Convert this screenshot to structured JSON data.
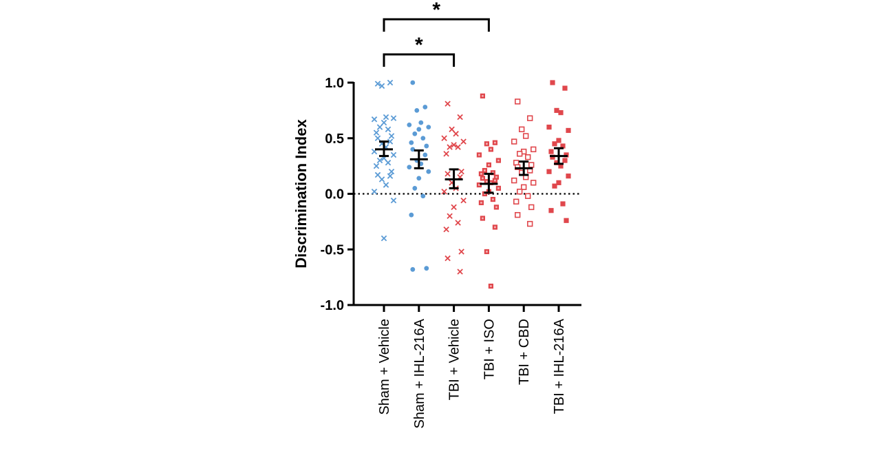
{
  "chart_data": {
    "type": "scatter",
    "title": "",
    "xlabel": "",
    "ylabel": "Discrimination Index",
    "ylim": [
      -1.0,
      1.0
    ],
    "yticks": [
      -1.0,
      -0.5,
      0.0,
      0.5,
      1.0
    ],
    "ytick_labels": [
      "-1.0",
      "-0.5",
      "0.0",
      "0.5",
      "1.0"
    ],
    "reference_line": 0.0,
    "categories": [
      "Sham + Vehicle",
      "Sham + IHL-216A",
      "TBI + Vehicle",
      "TBI + ISO",
      "TBI + CBD",
      "TBI + IHL-216A"
    ],
    "series": [
      {
        "name": "Sham + Vehicle",
        "marker": "x",
        "color": "#5b9bd5",
        "mean": 0.4,
        "sem_low": 0.34,
        "sem_high": 0.47,
        "values": [
          0.99,
          1.0,
          0.97,
          0.69,
          0.67,
          0.68,
          0.64,
          0.6,
          0.58,
          0.55,
          0.52,
          0.5,
          0.47,
          0.45,
          0.42,
          0.38,
          0.35,
          0.32,
          0.3,
          0.28,
          0.25,
          0.2,
          0.17,
          0.16,
          0.13,
          0.08,
          0.02,
          -0.06,
          -0.4
        ]
      },
      {
        "name": "Sham + IHL-216A",
        "marker": "circle",
        "color": "#5b9bd5",
        "mean": 0.31,
        "sem_low": 0.23,
        "sem_high": 0.39,
        "values": [
          1.0,
          0.78,
          0.75,
          0.64,
          0.62,
          0.6,
          0.58,
          0.54,
          0.5,
          0.46,
          0.43,
          0.4,
          0.35,
          0.3,
          0.27,
          0.24,
          0.2,
          0.14,
          0.05,
          -0.02,
          -0.19,
          -0.67,
          -0.68
        ]
      },
      {
        "name": "TBI + Vehicle",
        "marker": "x",
        "color": "#e0474c",
        "mean": 0.13,
        "sem_low": 0.05,
        "sem_high": 0.22,
        "values": [
          0.81,
          0.69,
          0.58,
          0.54,
          0.5,
          0.47,
          0.44,
          0.42,
          0.42,
          0.36,
          0.2,
          0.18,
          0.15,
          0.1,
          0.05,
          0.02,
          -0.06,
          -0.12,
          -0.2,
          -0.26,
          -0.32,
          -0.52,
          -0.58,
          -0.7
        ]
      },
      {
        "name": "TBI + ISO",
        "marker": "patterned-square",
        "color": "#e0474c",
        "mean": 0.09,
        "sem_low": 0.01,
        "sem_high": 0.18,
        "values": [
          0.88,
          0.46,
          0.45,
          0.4,
          0.35,
          0.3,
          0.26,
          0.21,
          0.19,
          0.18,
          0.15,
          0.14,
          0.12,
          0.11,
          0.1,
          0.08,
          0.05,
          0.02,
          0.0,
          -0.05,
          -0.08,
          -0.12,
          -0.22,
          -0.3,
          -0.52,
          -0.83
        ]
      },
      {
        "name": "TBI + CBD",
        "marker": "open-square",
        "color": "#e0474c",
        "mean": 0.23,
        "sem_low": 0.17,
        "sem_high": 0.29,
        "values": [
          0.83,
          0.68,
          0.58,
          0.52,
          0.47,
          0.4,
          0.38,
          0.36,
          0.33,
          0.28,
          0.26,
          0.24,
          0.21,
          0.19,
          0.15,
          0.12,
          0.1,
          0.06,
          0.02,
          -0.02,
          -0.07,
          -0.12,
          -0.19,
          -0.27
        ]
      },
      {
        "name": "TBI + IHL-216A",
        "marker": "filled-square",
        "color": "#e0474c",
        "mean": 0.34,
        "sem_low": 0.27,
        "sem_high": 0.41,
        "values": [
          1.0,
          0.95,
          0.75,
          0.73,
          0.6,
          0.57,
          0.48,
          0.45,
          0.43,
          0.38,
          0.35,
          0.33,
          0.3,
          0.28,
          0.25,
          0.2,
          0.16,
          0.1,
          0.07,
          -0.09,
          -0.15,
          -0.24
        ]
      }
    ],
    "significance": [
      {
        "from": "Sham + Vehicle",
        "to": "TBI + ISO",
        "label": "*"
      },
      {
        "from": "Sham + Vehicle",
        "to": "TBI + Vehicle",
        "label": "*"
      }
    ]
  }
}
